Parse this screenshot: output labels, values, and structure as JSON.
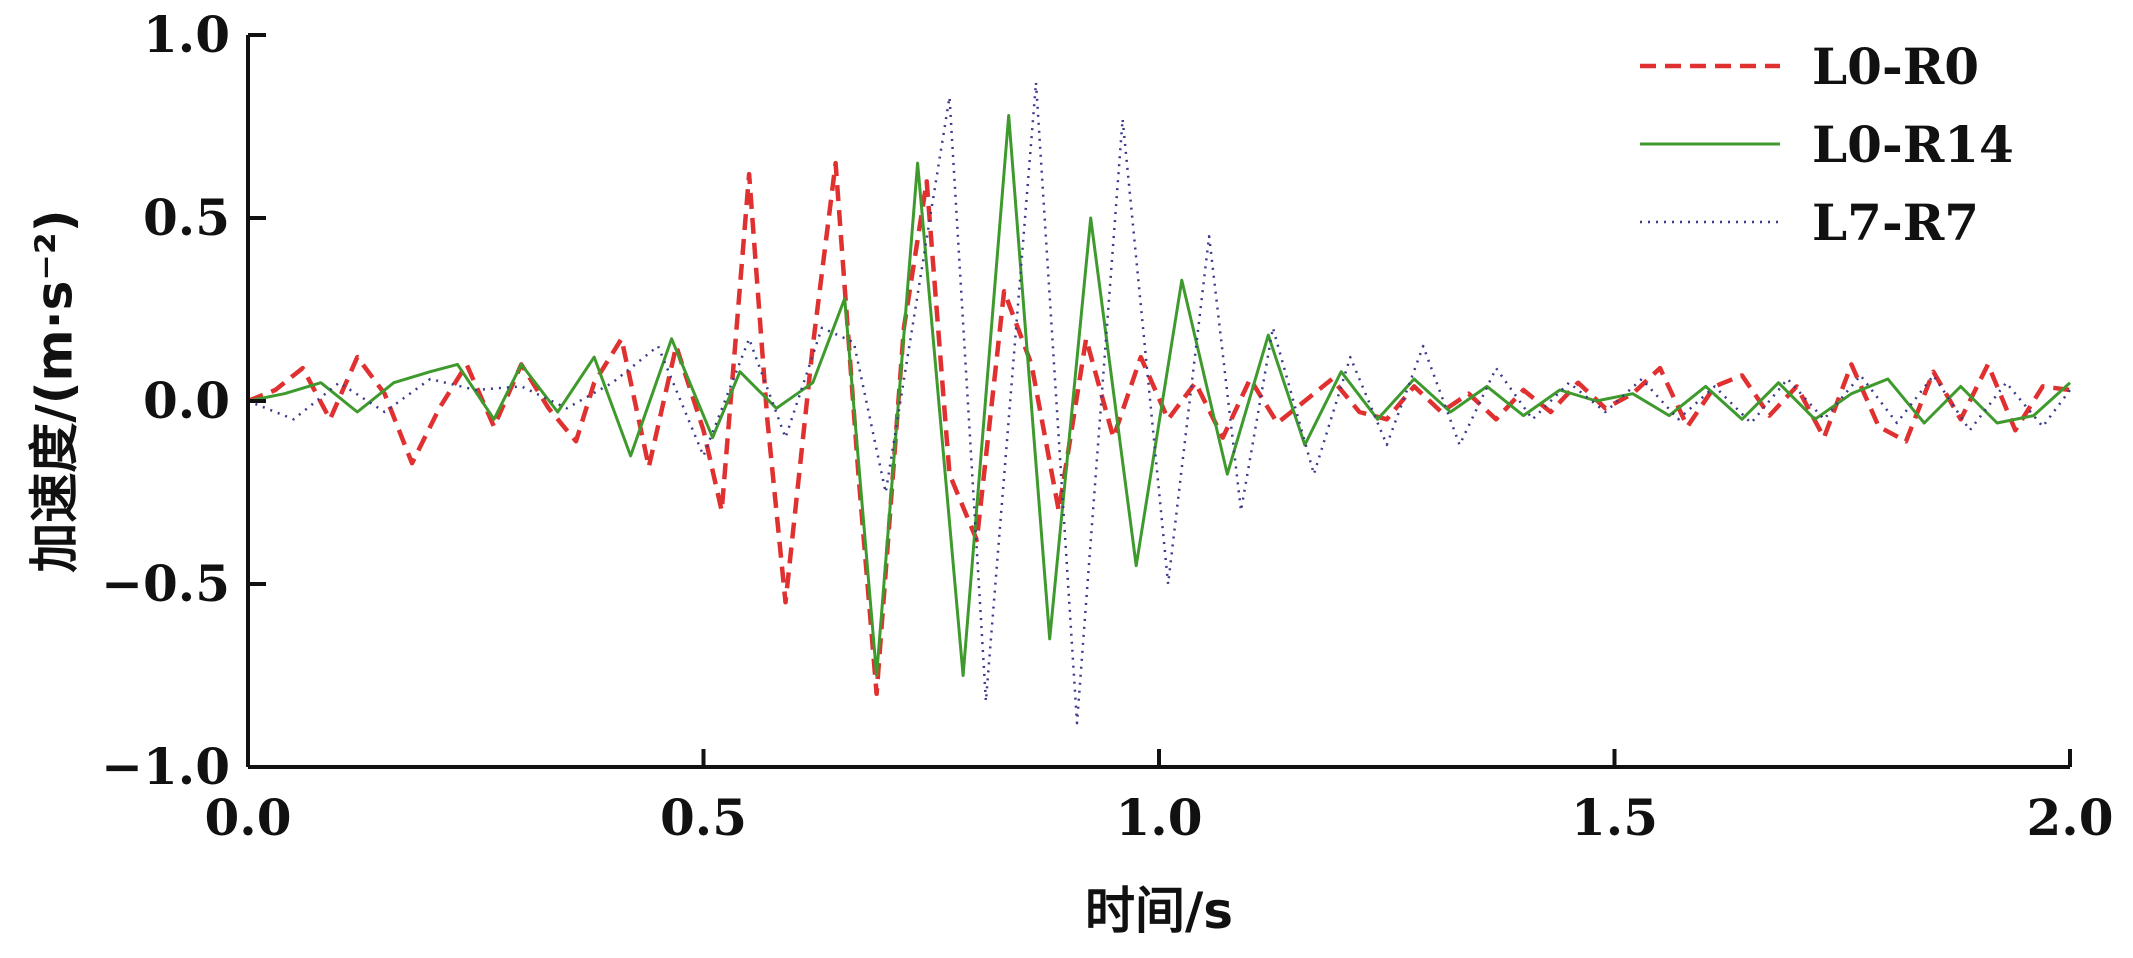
{
  "chart_data": {
    "type": "line",
    "title": "",
    "xlabel": "时间/s",
    "ylabel": "加速度/(m·s⁻²)",
    "xlim": [
      0.0,
      2.0
    ],
    "ylim": [
      -1.0,
      1.0
    ],
    "xticks": [
      0.0,
      0.5,
      1.0,
      1.5,
      2.0
    ],
    "xtick_labels": [
      "0.0",
      "0.5",
      "1.0",
      "1.5",
      "2.0"
    ],
    "yticks": [
      -1.0,
      -0.5,
      0.0,
      0.5,
      1.0
    ],
    "ytick_labels": [
      "−1.0",
      "−0.5",
      "0.0",
      "0.5",
      "1.0"
    ],
    "grid": false,
    "legend_position": "top-right",
    "series": [
      {
        "name": "L0-R0",
        "color": "#e03030",
        "style": "dashed",
        "x": [
          0.0,
          0.03,
          0.06,
          0.09,
          0.12,
          0.15,
          0.18,
          0.21,
          0.24,
          0.27,
          0.3,
          0.33,
          0.36,
          0.38,
          0.41,
          0.44,
          0.47,
          0.5,
          0.52,
          0.55,
          0.57,
          0.59,
          0.62,
          0.645,
          0.67,
          0.69,
          0.72,
          0.745,
          0.77,
          0.8,
          0.83,
          0.86,
          0.89,
          0.92,
          0.95,
          0.98,
          1.01,
          1.04,
          1.07,
          1.1,
          1.13,
          1.16,
          1.19,
          1.22,
          1.25,
          1.28,
          1.31,
          1.34,
          1.37,
          1.4,
          1.43,
          1.46,
          1.49,
          1.52,
          1.55,
          1.58,
          1.61,
          1.64,
          1.67,
          1.7,
          1.73,
          1.76,
          1.79,
          1.82,
          1.85,
          1.88,
          1.91,
          1.94,
          1.97,
          2.0
        ],
        "values": [
          0.0,
          0.03,
          0.09,
          -0.05,
          0.12,
          0.02,
          -0.17,
          -0.02,
          0.1,
          -0.07,
          0.1,
          -0.02,
          -0.11,
          0.05,
          0.17,
          -0.18,
          0.15,
          -0.08,
          -0.3,
          0.62,
          -0.05,
          -0.55,
          0.15,
          0.65,
          -0.2,
          -0.8,
          0.2,
          0.6,
          -0.2,
          -0.38,
          0.3,
          0.1,
          -0.3,
          0.17,
          -0.1,
          0.12,
          -0.05,
          0.05,
          -0.1,
          0.06,
          -0.06,
          0.0,
          0.06,
          -0.03,
          -0.05,
          0.04,
          -0.03,
          0.02,
          -0.05,
          0.03,
          -0.03,
          0.05,
          -0.02,
          0.02,
          0.09,
          -0.07,
          0.04,
          0.07,
          -0.04,
          0.04,
          -0.1,
          0.1,
          -0.07,
          -0.11,
          0.08,
          -0.05,
          0.1,
          -0.08,
          0.04,
          0.03
        ]
      },
      {
        "name": "L0-R14",
        "color": "#3f9a2e",
        "style": "solid",
        "x": [
          0.0,
          0.04,
          0.08,
          0.12,
          0.16,
          0.2,
          0.23,
          0.27,
          0.3,
          0.34,
          0.38,
          0.42,
          0.465,
          0.51,
          0.54,
          0.58,
          0.62,
          0.655,
          0.69,
          0.735,
          0.785,
          0.835,
          0.88,
          0.925,
          0.975,
          1.025,
          1.075,
          1.12,
          1.16,
          1.2,
          1.24,
          1.28,
          1.32,
          1.36,
          1.4,
          1.44,
          1.48,
          1.52,
          1.56,
          1.6,
          1.64,
          1.68,
          1.72,
          1.76,
          1.8,
          1.84,
          1.88,
          1.92,
          1.96,
          2.0
        ],
        "values": [
          0.0,
          0.02,
          0.05,
          -0.03,
          0.05,
          0.08,
          0.1,
          -0.05,
          0.1,
          -0.03,
          0.12,
          -0.15,
          0.17,
          -0.1,
          0.08,
          -0.02,
          0.05,
          0.28,
          -0.75,
          0.65,
          -0.75,
          0.78,
          -0.65,
          0.5,
          -0.45,
          0.33,
          -0.2,
          0.18,
          -0.12,
          0.08,
          -0.05,
          0.06,
          -0.03,
          0.04,
          -0.04,
          0.03,
          0.0,
          0.02,
          -0.04,
          0.04,
          -0.05,
          0.05,
          -0.05,
          0.02,
          0.06,
          -0.06,
          0.04,
          -0.06,
          -0.04,
          0.05
        ]
      },
      {
        "name": "L7-R7",
        "color": "#3a3a8c",
        "style": "dotted",
        "x": [
          0.0,
          0.05,
          0.1,
          0.15,
          0.2,
          0.25,
          0.3,
          0.35,
          0.4,
          0.45,
          0.5,
          0.55,
          0.59,
          0.63,
          0.665,
          0.7,
          0.77,
          0.81,
          0.865,
          0.91,
          0.96,
          1.01,
          1.055,
          1.09,
          1.125,
          1.17,
          1.21,
          1.25,
          1.29,
          1.33,
          1.37,
          1.41,
          1.45,
          1.49,
          1.53,
          1.57,
          1.61,
          1.65,
          1.69,
          1.73,
          1.77,
          1.81,
          1.85,
          1.89,
          1.93,
          1.97,
          2.0
        ],
        "values": [
          0.0,
          -0.05,
          0.05,
          -0.03,
          0.06,
          0.03,
          0.04,
          -0.02,
          0.05,
          0.15,
          -0.15,
          0.17,
          -0.1,
          0.2,
          0.16,
          -0.25,
          0.83,
          -0.82,
          0.87,
          -0.88,
          0.77,
          -0.5,
          0.45,
          -0.3,
          0.2,
          -0.2,
          0.12,
          -0.12,
          0.15,
          -0.12,
          0.09,
          -0.05,
          0.05,
          -0.03,
          0.06,
          -0.05,
          0.04,
          -0.06,
          0.06,
          -0.05,
          0.07,
          -0.06,
          0.07,
          -0.08,
          0.05,
          -0.07,
          0.03
        ]
      }
    ]
  }
}
